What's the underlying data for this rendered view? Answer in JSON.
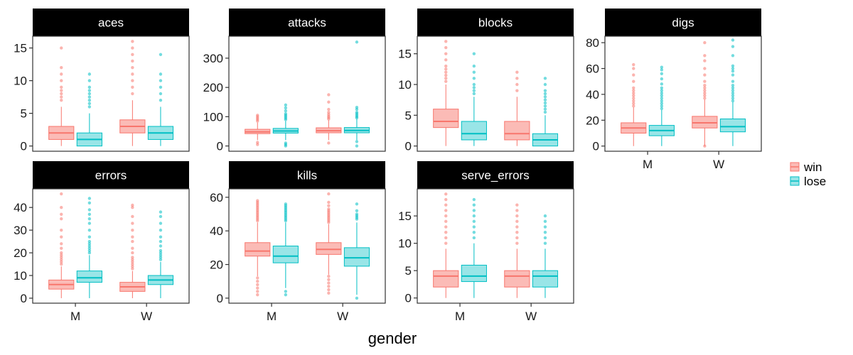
{
  "chart_data": {
    "type": "boxplot",
    "title": "",
    "xlabel": "gender",
    "categories": [
      "M",
      "W"
    ],
    "legend": {
      "position": "right",
      "entries": [
        {
          "name": "win",
          "color": "#F8766D",
          "fill": "#FBBBB6"
        },
        {
          "name": "lose",
          "color": "#00BFC4",
          "fill": "#99E5E7"
        }
      ]
    },
    "grid": false,
    "panels": [
      {
        "name": "aces",
        "ylim": [
          -0.8,
          16.8
        ],
        "yticks": [
          0,
          5,
          10,
          15
        ],
        "boxes": [
          {
            "gender": "M",
            "group": "win",
            "q1": 1,
            "median": 2,
            "q3": 3,
            "lower": 0,
            "upper": 6,
            "outliers": [
              7,
              7.5,
              8,
              8.5,
              9,
              10,
              11,
              12,
              15
            ]
          },
          {
            "gender": "M",
            "group": "lose",
            "q1": 0,
            "median": 1,
            "q3": 2,
            "lower": 0,
            "upper": 5,
            "outliers": [
              6,
              6.5,
              7,
              7.5,
              8,
              8.5,
              9,
              10,
              11
            ]
          },
          {
            "gender": "W",
            "group": "win",
            "q1": 2,
            "median": 3,
            "q3": 4,
            "lower": 0,
            "upper": 7,
            "outliers": [
              8,
              9,
              10,
              11,
              12,
              13,
              14,
              15,
              16
            ]
          },
          {
            "gender": "W",
            "group": "lose",
            "q1": 1,
            "median": 2,
            "q3": 3,
            "lower": 0,
            "upper": 6,
            "outliers": [
              7,
              8,
              9,
              10,
              11,
              14
            ]
          }
        ]
      },
      {
        "name": "attacks",
        "ylim": [
          -18,
          375
        ],
        "yticks": [
          0,
          100,
          200,
          300
        ],
        "boxes": [
          {
            "gender": "M",
            "group": "win",
            "q1": 42,
            "median": 48,
            "q3": 57,
            "lower": 20,
            "upper": 80,
            "outliers": [
              85,
              90,
              95,
              100,
              105,
              5,
              12
            ]
          },
          {
            "gender": "M",
            "group": "lose",
            "q1": 44,
            "median": 51,
            "q3": 60,
            "lower": 20,
            "upper": 85,
            "outliers": [
              90,
              95,
              100,
              105,
              110,
              120,
              130,
              140,
              0,
              5,
              10
            ]
          },
          {
            "gender": "W",
            "group": "win",
            "q1": 45,
            "median": 52,
            "q3": 62,
            "lower": 20,
            "upper": 88,
            "outliers": [
              92,
              97,
              102,
              108,
              115,
              125,
              150,
              175,
              10
            ]
          },
          {
            "gender": "W",
            "group": "lose",
            "q1": 45,
            "median": 53,
            "q3": 63,
            "lower": 20,
            "upper": 92,
            "outliers": [
              96,
              100,
              105,
              110,
              115,
              125,
              132,
              355,
              0,
              15
            ]
          }
        ]
      },
      {
        "name": "blocks",
        "ylim": [
          -0.85,
          17.85
        ],
        "yticks": [
          0,
          5,
          10,
          15
        ],
        "boxes": [
          {
            "gender": "M",
            "group": "win",
            "q1": 3,
            "median": 4,
            "q3": 6,
            "lower": 0,
            "upper": 10,
            "outliers": [
              10.5,
              11,
              11.5,
              12,
              12.5,
              13,
              14,
              15,
              16,
              17
            ]
          },
          {
            "gender": "M",
            "group": "lose",
            "q1": 1,
            "median": 2,
            "q3": 4,
            "lower": 0,
            "upper": 8,
            "outliers": [
              8.5,
              9,
              9.5,
              10,
              11,
              12,
              13,
              15
            ]
          },
          {
            "gender": "W",
            "group": "win",
            "q1": 1,
            "median": 2,
            "q3": 4,
            "lower": 0,
            "upper": 8,
            "outliers": [
              9,
              10,
              11,
              12
            ]
          },
          {
            "gender": "W",
            "group": "lose",
            "q1": 0,
            "median": 1,
            "q3": 2,
            "lower": 0,
            "upper": 5,
            "outliers": [
              5.5,
              6,
              6.5,
              7,
              7.5,
              8,
              8.5,
              9,
              10,
              11
            ]
          }
        ]
      },
      {
        "name": "digs",
        "ylim": [
          -4,
          85
        ],
        "yticks": [
          0,
          20,
          40,
          60,
          80
        ],
        "boxes": [
          {
            "gender": "M",
            "group": "win",
            "q1": 10,
            "median": 14,
            "q3": 18,
            "lower": 0,
            "upper": 30,
            "outliers": [
              31,
              33,
              35,
              37,
              39,
              41,
              43,
              45,
              50,
              55,
              60,
              63
            ]
          },
          {
            "gender": "M",
            "group": "lose",
            "q1": 8,
            "median": 12,
            "q3": 16,
            "lower": 0,
            "upper": 28,
            "outliers": [
              29,
              31,
              33,
              35,
              37,
              39,
              41,
              43,
              45,
              48,
              52,
              56,
              59,
              61
            ]
          },
          {
            "gender": "W",
            "group": "win",
            "q1": 14,
            "median": 18,
            "q3": 23,
            "lower": 0,
            "upper": 36,
            "outliers": [
              37,
              39,
              41,
              43,
              45,
              47,
              50,
              55,
              60,
              66,
              70,
              80,
              0
            ]
          },
          {
            "gender": "W",
            "group": "lose",
            "q1": 11,
            "median": 15,
            "q3": 21,
            "lower": 0,
            "upper": 34,
            "outliers": [
              35,
              37,
              39,
              41,
              43,
              45,
              47,
              50,
              55,
              58,
              60,
              62,
              70,
              77,
              82
            ]
          }
        ]
      },
      {
        "name": "errors",
        "ylim": [
          -2.2,
          48.2
        ],
        "yticks": [
          0,
          10,
          20,
          30,
          40
        ],
        "boxes": [
          {
            "gender": "M",
            "group": "win",
            "q1": 4,
            "median": 6,
            "q3": 8,
            "lower": 0,
            "upper": 14,
            "outliers": [
              15,
              16,
              17,
              18,
              19,
              20,
              22,
              24,
              27,
              30,
              35,
              37,
              40,
              46
            ]
          },
          {
            "gender": "M",
            "group": "lose",
            "q1": 7,
            "median": 9,
            "q3": 12,
            "lower": 0,
            "upper": 19,
            "outliers": [
              20,
              21,
              22,
              23,
              24,
              25,
              27,
              30,
              33,
              35,
              37,
              39,
              42,
              44
            ]
          },
          {
            "gender": "W",
            "group": "win",
            "q1": 3,
            "median": 5,
            "q3": 7,
            "lower": 0,
            "upper": 12,
            "outliers": [
              13,
              14,
              15,
              16,
              17,
              18,
              20,
              22,
              25,
              27,
              30,
              33,
              36,
              40,
              41
            ]
          },
          {
            "gender": "W",
            "group": "lose",
            "q1": 6,
            "median": 8,
            "q3": 10,
            "lower": 0,
            "upper": 16,
            "outliers": [
              17,
              18,
              19,
              20,
              21,
              23,
              25,
              27,
              30,
              33,
              36,
              38
            ]
          }
        ]
      },
      {
        "name": "kills",
        "ylim": [
          -3,
          65
        ],
        "yticks": [
          0,
          20,
          40,
          60
        ],
        "boxes": [
          {
            "gender": "M",
            "group": "win",
            "q1": 25,
            "median": 28,
            "q3": 33,
            "lower": 13,
            "upper": 45,
            "outliers": [
              46,
              47,
              48,
              49,
              50,
              51,
              52,
              53,
              54,
              55,
              56,
              57,
              58,
              12,
              10,
              8,
              6,
              4,
              2
            ]
          },
          {
            "gender": "M",
            "group": "lose",
            "q1": 21,
            "median": 25,
            "q3": 31,
            "lower": 6,
            "upper": 45,
            "outliers": [
              46,
              47,
              48,
              49,
              50,
              51,
              52,
              53,
              54,
              55,
              56,
              4,
              2
            ]
          },
          {
            "gender": "W",
            "group": "win",
            "q1": 26,
            "median": 29,
            "q3": 33,
            "lower": 14,
            "upper": 44,
            "outliers": [
              45,
              46,
              47,
              48,
              49,
              50,
              51,
              52,
              53,
              55,
              57,
              62,
              13,
              11,
              9,
              7,
              5,
              3
            ]
          },
          {
            "gender": "W",
            "group": "lose",
            "q1": 19,
            "median": 24,
            "q3": 30,
            "lower": 2,
            "upper": 45,
            "outliers": [
              47,
              48,
              49,
              50,
              52,
              56,
              0
            ]
          }
        ]
      },
      {
        "name": "serve_errors",
        "ylim": [
          -0.95,
          19.95
        ],
        "yticks": [
          0,
          5,
          10,
          15
        ],
        "boxes": [
          {
            "gender": "M",
            "group": "win",
            "q1": 2,
            "median": 4,
            "q3": 5,
            "lower": 0,
            "upper": 9,
            "outliers": [
              10,
              11,
              12,
              13,
              14,
              15,
              16,
              17,
              18,
              19
            ]
          },
          {
            "gender": "M",
            "group": "lose",
            "q1": 3,
            "median": 4,
            "q3": 6,
            "lower": 0,
            "upper": 10,
            "outliers": [
              11,
              12,
              13,
              14,
              15,
              16,
              17,
              18
            ]
          },
          {
            "gender": "W",
            "group": "win",
            "q1": 2,
            "median": 4,
            "q3": 5,
            "lower": 0,
            "upper": 9,
            "outliers": [
              10,
              11,
              12,
              13,
              14,
              15,
              16,
              17
            ]
          },
          {
            "gender": "W",
            "group": "lose",
            "q1": 2,
            "median": 4,
            "q3": 5,
            "lower": 0,
            "upper": 9,
            "outliers": [
              10,
              11,
              12,
              13,
              14,
              15
            ]
          }
        ]
      }
    ]
  }
}
